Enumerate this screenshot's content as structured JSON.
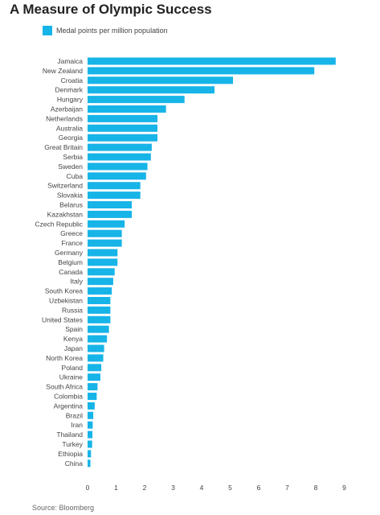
{
  "chart_data": {
    "type": "bar",
    "orientation": "horizontal",
    "title": "A Measure of Olympic Success",
    "legend": {
      "position": "top-left"
    },
    "series": [
      {
        "name": "Medal points per million population",
        "color": "#17b4e8",
        "values": [
          8.7,
          7.95,
          5.1,
          4.45,
          3.4,
          2.75,
          2.45,
          2.45,
          2.45,
          2.25,
          2.22,
          2.1,
          2.05,
          1.85,
          1.85,
          1.55,
          1.55,
          1.3,
          1.2,
          1.2,
          1.05,
          1.05,
          0.95,
          0.9,
          0.85,
          0.8,
          0.8,
          0.8,
          0.75,
          0.68,
          0.58,
          0.55,
          0.48,
          0.45,
          0.35,
          0.32,
          0.25,
          0.2,
          0.18,
          0.17,
          0.16,
          0.12,
          0.1
        ]
      }
    ],
    "categories": [
      "Jamaica",
      "New Zealand",
      "Croatia",
      "Denmark",
      "Hungary",
      "Azerbaijan",
      "Netherlands",
      "Australia",
      "Georgia",
      "Great Britain",
      "Serbia",
      "Sweden",
      "Cuba",
      "Switzerland",
      "Slovakia",
      "Belarus",
      "Kazakhstan",
      "Czech Republic",
      "Greece",
      "France",
      "Germany",
      "Belgium",
      "Canada",
      "Italy",
      "South Korea",
      "Uzbekistan",
      "Russia",
      "United States",
      "Spain",
      "Kenya",
      "Japan",
      "North Korea",
      "Poland",
      "Ukraine",
      "South Africa",
      "Colombia",
      "Argentina",
      "Brazil",
      "Iran",
      "Thailand",
      "Turkey",
      "Ethiopia",
      "China"
    ],
    "xlim": [
      0,
      9
    ],
    "xticks": [
      0,
      1,
      2,
      3,
      4,
      5,
      6,
      7,
      8,
      9
    ],
    "grid": false
  },
  "source": "Source: Bloomberg"
}
